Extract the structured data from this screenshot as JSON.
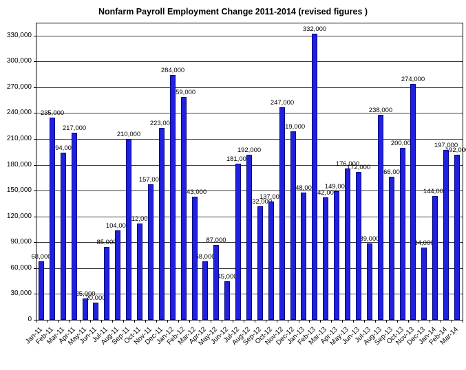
{
  "chart_data": {
    "type": "bar",
    "title": "Nonfarm Payroll Employment Change 2011-2014  (revised figures )",
    "xlabel": "",
    "ylabel": "",
    "legend": "none",
    "grid": "horizontal",
    "background": "#FFFFFF",
    "bar_color": "#2020DF",
    "bar_border_color": "#000080",
    "ylim": [
      0,
      345000
    ],
    "y_tick_step": 30000,
    "y_tick_labels": [
      "0",
      "30,000",
      "60,000",
      "90,000",
      "120,000",
      "150,000",
      "180,000",
      "210,000",
      "240,000",
      "270,000",
      "300,000",
      "330,000"
    ],
    "categories": [
      "Jan-11",
      "Feb-11",
      "Mar-11",
      "Apr-11",
      "May-11",
      "Jun-11",
      "Jul-11",
      "Aug-11",
      "Sep-11",
      "Oct-11",
      "Nov-11",
      "Dec-11",
      "Jan-12",
      "Feb-12",
      "Mar-12",
      "Apr-12",
      "May-12",
      "Jun-12",
      "Jul-12",
      "Aug-12",
      "Sep-12",
      "Oct-12",
      "Nov-12",
      "Dec-12",
      "Jan-13",
      "Feb-13",
      "Mar-13",
      "Apr-13",
      "May-13",
      "Jun-13",
      "Jul-13",
      "Aug-13",
      "Sep-13",
      "Oct-13",
      "Nov-13",
      "Dec-13",
      "Jan-14",
      "Feb-14",
      "Mar-14"
    ],
    "values": [
      68000,
      235000,
      194000,
      217000,
      25000,
      20000,
      85000,
      104000,
      210000,
      112000,
      157000,
      223000,
      284000,
      259000,
      143000,
      68000,
      87000,
      45000,
      181000,
      192000,
      132000,
      137000,
      247000,
      219000,
      148000,
      332000,
      142000,
      149000,
      176000,
      172000,
      89000,
      238000,
      166000,
      200000,
      274000,
      84000,
      144000,
      197000,
      192000
    ],
    "data_labels": [
      "68,000",
      "235,000",
      "194,000",
      "217,000",
      "25,000",
      "20,000",
      "85,000",
      "104,000",
      "210,000",
      "112,000",
      "157,000",
      "223,000",
      "284,000",
      "259,000",
      "143,000",
      "68,000",
      "87,000",
      "45,000",
      "181,000",
      "192,000",
      "132,000",
      "137,000",
      "247,000",
      "219,000",
      "148,000",
      "332,000",
      "142,000",
      "149,000",
      "176,000",
      "172,000",
      "89,000",
      "238,000",
      "166,000",
      "200,000",
      "274,000",
      "84,000",
      "144,000",
      "197,000",
      "192,000"
    ]
  }
}
